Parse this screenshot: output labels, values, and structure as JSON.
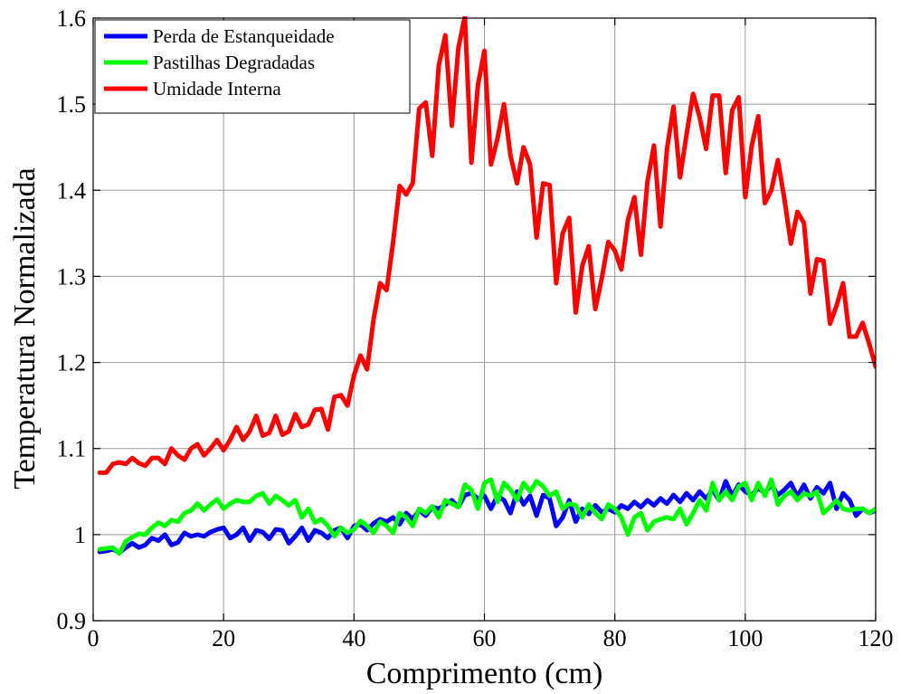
{
  "chart_data": {
    "type": "line",
    "title": "",
    "xlabel": "Comprimento (cm)",
    "ylabel": "Temperatura Normalizada",
    "xlim": [
      0,
      120
    ],
    "ylim": [
      0.9,
      1.6
    ],
    "xticks": [
      0,
      20,
      40,
      60,
      80,
      100,
      120
    ],
    "xtick_labels": [
      "0",
      "20",
      "40",
      "60",
      "80",
      "100",
      "120"
    ],
    "yticks": [
      0.9,
      1.0,
      1.1,
      1.2,
      1.3,
      1.4,
      1.5,
      1.6
    ],
    "ytick_labels": [
      "0.9",
      "1",
      "1.1",
      "1.2",
      "1.3",
      "1.4",
      "1.5",
      "1.6"
    ],
    "grid": true,
    "legend_position": "top-left",
    "x": [
      1,
      2,
      3,
      4,
      5,
      6,
      7,
      8,
      9,
      10,
      11,
      12,
      13,
      14,
      15,
      16,
      17,
      18,
      19,
      20,
      21,
      22,
      23,
      24,
      25,
      26,
      27,
      28,
      29,
      30,
      31,
      32,
      33,
      34,
      35,
      36,
      37,
      38,
      39,
      40,
      41,
      42,
      43,
      44,
      45,
      46,
      47,
      48,
      49,
      50,
      51,
      52,
      53,
      54,
      55,
      56,
      57,
      58,
      59,
      60,
      61,
      62,
      63,
      64,
      65,
      66,
      67,
      68,
      69,
      70,
      71,
      72,
      73,
      74,
      75,
      76,
      77,
      78,
      79,
      80,
      81,
      82,
      83,
      84,
      85,
      86,
      87,
      88,
      89,
      90,
      91,
      92,
      93,
      94,
      95,
      96,
      97,
      98,
      99,
      100,
      101,
      102,
      103,
      104,
      105,
      106,
      107,
      108,
      109,
      110,
      111,
      112,
      113,
      114,
      115,
      116,
      117,
      118,
      119,
      120
    ],
    "series": [
      {
        "name": "Perda de Estanqueidade",
        "color": "#0000ff",
        "values": [
          0.98,
          0.981,
          0.983,
          0.979,
          0.985,
          0.99,
          0.985,
          0.988,
          0.996,
          0.993,
          1.0,
          0.988,
          0.991,
          1.002,
          0.998,
          1.0,
          0.998,
          1.003,
          1.006,
          1.008,
          0.996,
          1.0,
          1.008,
          0.993,
          1.005,
          1.003,
          0.995,
          1.006,
          1.005,
          0.99,
          0.998,
          1.008,
          0.993,
          1.005,
          1.002,
          0.996,
          1.005,
          1.008,
          0.996,
          1.01,
          1.012,
          1.005,
          1.013,
          1.018,
          1.015,
          1.02,
          1.012,
          1.025,
          1.018,
          1.028,
          1.022,
          1.032,
          1.03,
          1.035,
          1.04,
          1.032,
          1.046,
          1.048,
          1.042,
          1.045,
          1.03,
          1.045,
          1.04,
          1.025,
          1.05,
          1.035,
          1.045,
          1.022,
          1.046,
          1.042,
          1.01,
          1.02,
          1.04,
          1.015,
          1.03,
          1.024,
          1.034,
          1.026,
          1.03,
          1.026,
          1.034,
          1.03,
          1.038,
          1.032,
          1.04,
          1.034,
          1.042,
          1.036,
          1.046,
          1.038,
          1.048,
          1.04,
          1.05,
          1.042,
          1.052,
          1.04,
          1.062,
          1.045,
          1.058,
          1.05,
          1.046,
          1.054,
          1.048,
          1.058,
          1.046,
          1.052,
          1.06,
          1.044,
          1.058,
          1.042,
          1.055,
          1.048,
          1.06,
          1.03,
          1.048,
          1.04,
          1.022,
          1.03,
          1.025,
          1.028
        ]
      },
      {
        "name": "Pastilhas Degradadas",
        "color": "#00ff00",
        "values": [
          0.983,
          0.984,
          0.985,
          0.978,
          0.992,
          0.997,
          1.001,
          1.0,
          1.008,
          1.014,
          1.01,
          1.017,
          1.015,
          1.025,
          1.028,
          1.036,
          1.028,
          1.035,
          1.041,
          1.03,
          1.036,
          1.04,
          1.038,
          1.038,
          1.045,
          1.048,
          1.036,
          1.045,
          1.04,
          1.034,
          1.04,
          1.02,
          1.03,
          1.014,
          1.018,
          1.01,
          0.998,
          1.008,
          1.002,
          1.006,
          1.016,
          1.01,
          1.002,
          1.015,
          1.01,
          1.002,
          1.025,
          1.02,
          1.01,
          1.03,
          1.025,
          1.033,
          1.02,
          1.04,
          1.036,
          1.032,
          1.058,
          1.052,
          1.03,
          1.06,
          1.064,
          1.038,
          1.06,
          1.052,
          1.04,
          1.06,
          1.05,
          1.062,
          1.056,
          1.045,
          1.05,
          1.03,
          1.036,
          1.034,
          1.02,
          1.035,
          1.025,
          1.018,
          1.035,
          1.03,
          1.02,
          1.0,
          1.02,
          1.025,
          1.005,
          1.015,
          1.018,
          1.02,
          1.018,
          1.03,
          1.012,
          1.025,
          1.04,
          1.028,
          1.06,
          1.04,
          1.05,
          1.04,
          1.056,
          1.06,
          1.04,
          1.06,
          1.045,
          1.064,
          1.035,
          1.045,
          1.05,
          1.04,
          1.048,
          1.045,
          1.05,
          1.025,
          1.032,
          1.04,
          1.03,
          1.028,
          1.03,
          1.03,
          1.025,
          1.03
        ]
      },
      {
        "name": "Umidade Interna",
        "color": "#ff0000",
        "values": [
          1.072,
          1.072,
          1.082,
          1.084,
          1.082,
          1.089,
          1.083,
          1.08,
          1.089,
          1.089,
          1.082,
          1.1,
          1.092,
          1.087,
          1.1,
          1.105,
          1.092,
          1.1,
          1.11,
          1.098,
          1.11,
          1.125,
          1.11,
          1.12,
          1.138,
          1.115,
          1.118,
          1.138,
          1.116,
          1.12,
          1.14,
          1.125,
          1.128,
          1.145,
          1.146,
          1.122,
          1.16,
          1.162,
          1.15,
          1.185,
          1.208,
          1.192,
          1.25,
          1.292,
          1.284,
          1.34,
          1.405,
          1.395,
          1.408,
          1.495,
          1.502,
          1.44,
          1.545,
          1.58,
          1.475,
          1.565,
          1.602,
          1.432,
          1.522,
          1.562,
          1.43,
          1.46,
          1.5,
          1.44,
          1.408,
          1.45,
          1.43,
          1.345,
          1.408,
          1.406,
          1.292,
          1.35,
          1.368,
          1.258,
          1.312,
          1.335,
          1.262,
          1.298,
          1.34,
          1.33,
          1.308,
          1.365,
          1.392,
          1.325,
          1.41,
          1.452,
          1.358,
          1.448,
          1.497,
          1.415,
          1.465,
          1.512,
          1.485,
          1.448,
          1.51,
          1.51,
          1.42,
          1.493,
          1.508,
          1.392,
          1.452,
          1.486,
          1.385,
          1.4,
          1.435,
          1.39,
          1.338,
          1.375,
          1.362,
          1.28,
          1.32,
          1.318,
          1.245,
          1.266,
          1.292,
          1.23,
          1.23,
          1.246,
          1.222,
          1.195
        ]
      }
    ]
  }
}
